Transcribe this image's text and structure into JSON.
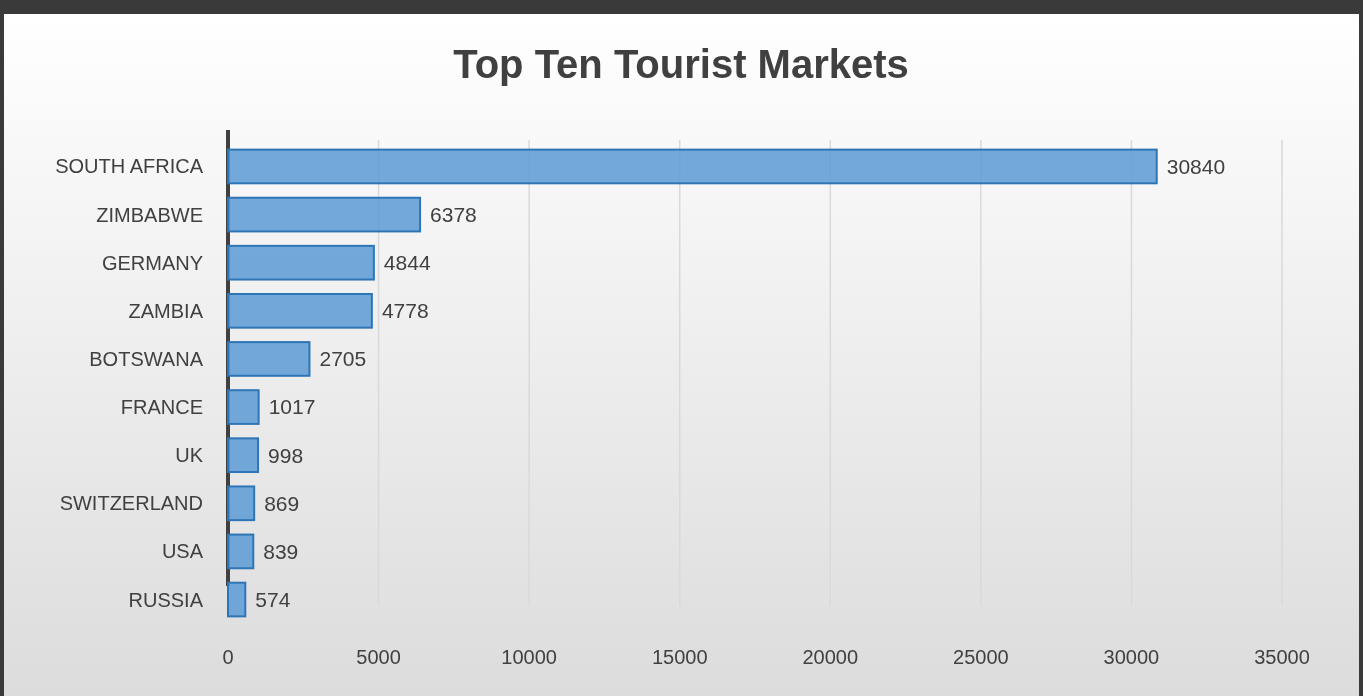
{
  "chart_data": {
    "type": "bar",
    "orientation": "horizontal",
    "title": "Top Ten Tourist Markets",
    "categories": [
      "SOUTH AFRICA",
      "ZIMBABWE",
      "GERMANY",
      "ZAMBIA",
      "BOTSWANA",
      "FRANCE",
      "UK",
      "SWITZERLAND",
      "USA",
      "RUSSIA"
    ],
    "values": [
      30840,
      6378,
      4844,
      4778,
      2705,
      1017,
      998,
      869,
      839,
      574
    ],
    "color": "#5b9bd5",
    "xlim": [
      0,
      35000
    ],
    "xticks": [
      0,
      5000,
      10000,
      15000,
      20000,
      25000,
      30000,
      35000
    ],
    "grid": "x",
    "data_labels": true
  }
}
